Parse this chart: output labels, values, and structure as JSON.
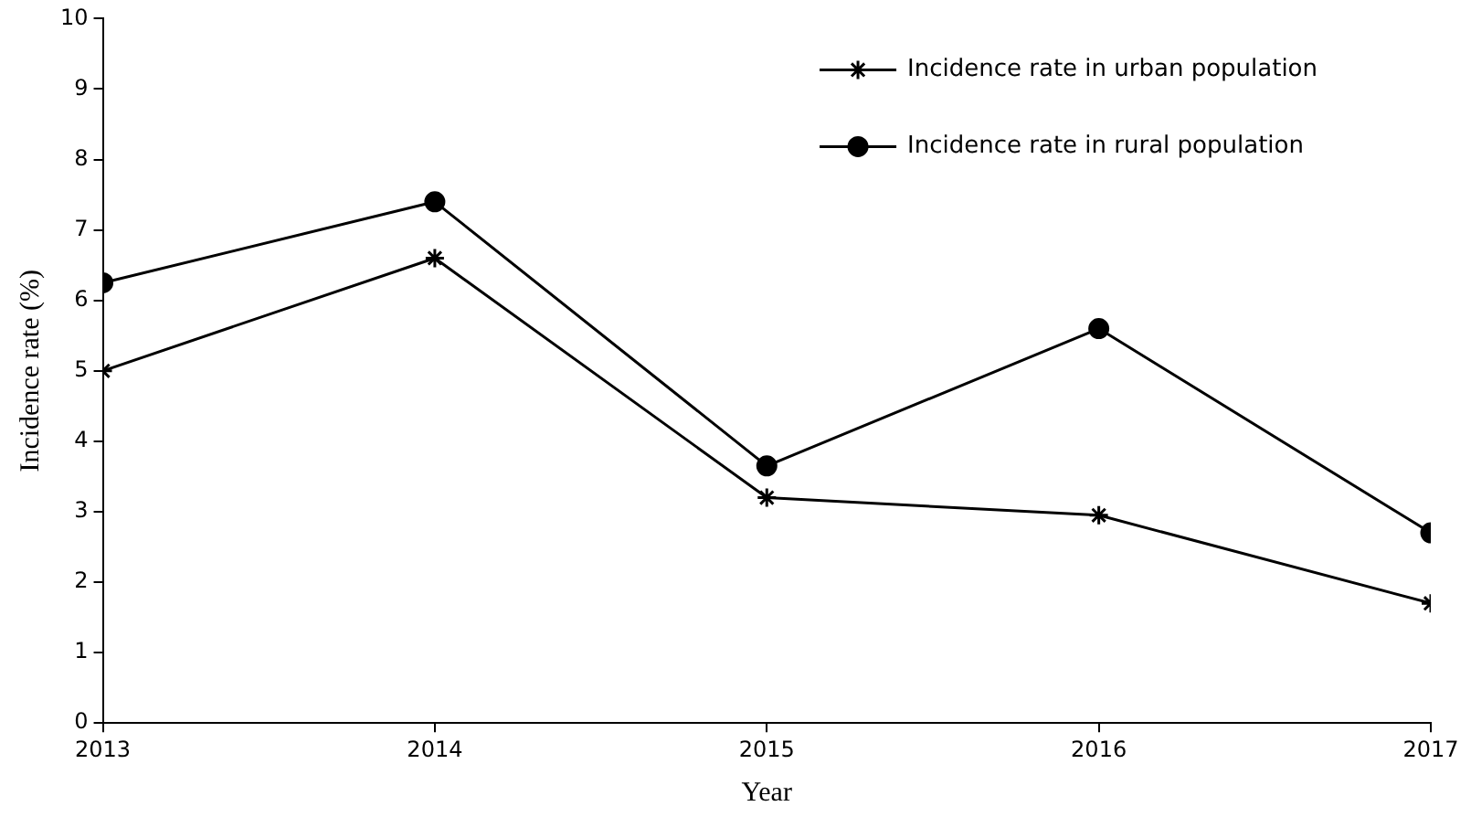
{
  "chart_data": {
    "type": "line",
    "xlabel": "Year",
    "ylabel": "Incidence rate (%)",
    "x": [
      2013,
      2014,
      2015,
      2016,
      2017
    ],
    "xlim": [
      2013,
      2017
    ],
    "xticks": [
      2013,
      2014,
      2015,
      2016,
      2017
    ],
    "ylim": [
      0,
      10
    ],
    "yticks": [
      0,
      1,
      2,
      3,
      4,
      5,
      6,
      7,
      8,
      9,
      10
    ],
    "grid": false,
    "legend": "top right",
    "line_style": "solid",
    "series": [
      {
        "name": "Incidence rate in urban population",
        "color": "#000000",
        "marker": "cross",
        "values": [
          5.0,
          6.6,
          3.2,
          2.95,
          1.7
        ]
      },
      {
        "name": "Incidence rate in rural population",
        "color": "#000000",
        "marker": "circle",
        "values": [
          6.25,
          7.4,
          3.65,
          5.6,
          2.7
        ]
      }
    ]
  }
}
